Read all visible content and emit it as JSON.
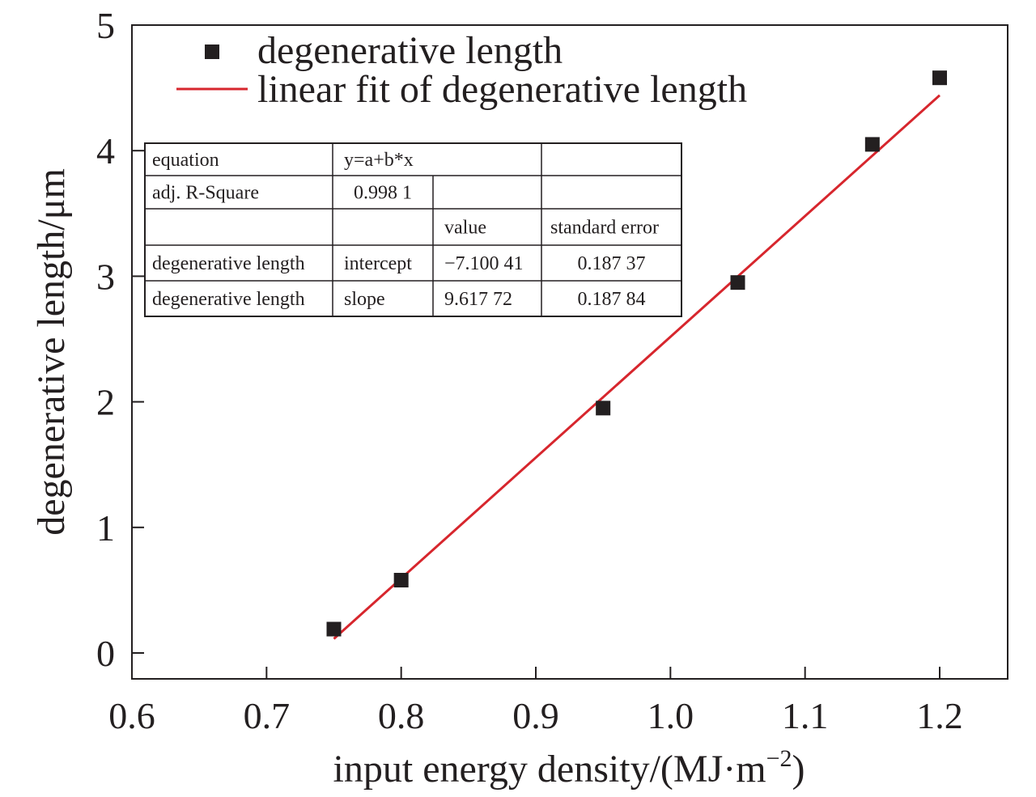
{
  "chart_data": {
    "type": "scatter",
    "xlabel": "input energy density/(MJ·m",
    "xlabel_sup": "−2",
    "xlabel_end": ")",
    "ylabel": "degenerative length/μm",
    "xlim": [
      0.6,
      1.25
    ],
    "ylim": [
      -0.2,
      5
    ],
    "x_ticks": [
      0.6,
      0.7,
      0.8,
      0.9,
      1.0,
      1.1,
      1.2
    ],
    "x_tick_labels": [
      "0.6",
      "0.7",
      "0.8",
      "0.9",
      "1.0",
      "1.1",
      "1.2"
    ],
    "y_ticks": [
      0,
      1,
      2,
      3,
      4,
      5
    ],
    "y_tick_labels": [
      "0",
      "1",
      "2",
      "3",
      "4",
      "5"
    ],
    "grid": false,
    "legend_placement": "top",
    "series": [
      {
        "name": "degenerative length",
        "kind": "scatter",
        "marker": "square",
        "color": "#231f20",
        "x": [
          0.75,
          0.8,
          0.95,
          1.05,
          1.15,
          1.2
        ],
        "y": [
          0.19,
          0.58,
          1.95,
          2.95,
          4.05,
          4.58
        ]
      },
      {
        "name": "linear fit of degenerative length",
        "kind": "line",
        "color": "#d7262d",
        "x": [
          0.75,
          1.2
        ],
        "y": [
          0.1129,
          4.4412
        ]
      }
    ],
    "fit_table": [
      [
        "equation",
        "y=a+b*x",
        "",
        ""
      ],
      [
        "adj. R-Square",
        "0.998 1",
        "",
        ""
      ],
      [
        "",
        "",
        "value",
        "standard error"
      ],
      [
        "degenerative length",
        "intercept",
        "−7.100 41",
        "0.187 37"
      ],
      [
        "degenerative length",
        "slope",
        "9.617 72",
        "0.187 84"
      ]
    ]
  }
}
